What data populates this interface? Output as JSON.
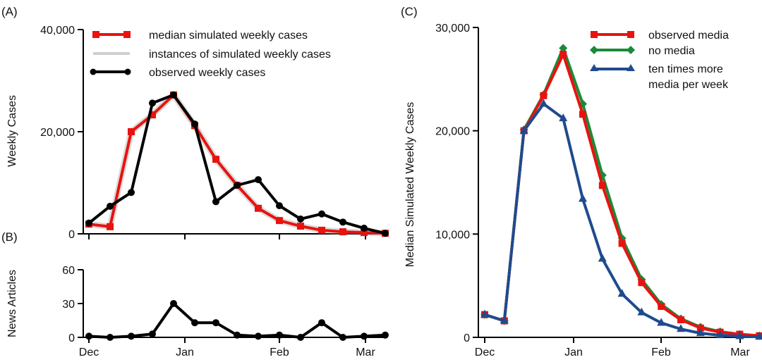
{
  "colors": {
    "median": "#e8130f",
    "observed": "#000000",
    "instances": "#cfcfcf",
    "observed_media": "#e8130f",
    "no_media": "#1a8a3a",
    "ten_times": "#1f4b8e"
  },
  "chart_data": [
    {
      "panel": "(A)",
      "type": "line",
      "ylabel": "Weekly Cases",
      "xlabel": "",
      "ylim": [
        0,
        40000
      ],
      "yticks": [
        0,
        20000,
        40000
      ],
      "ytick_labels": [
        "0",
        "20,000",
        "40,000"
      ],
      "xtick_labels": [
        "Dec",
        "Jan",
        "Feb",
        "Mar"
      ],
      "x_weeks": [
        0,
        1,
        2,
        3,
        4,
        5,
        6,
        7,
        8,
        9,
        10,
        11,
        12,
        13,
        14
      ],
      "legend_position": "top",
      "series": [
        {
          "name": "median simulated weekly cases",
          "marker": "square",
          "values": [
            1900,
            1400,
            20000,
            23300,
            27200,
            21200,
            14600,
            9500,
            5000,
            2600,
            1500,
            700,
            400,
            250,
            100
          ]
        },
        {
          "name": "instances of simulated weekly cases",
          "marker": "none",
          "values": []
        },
        {
          "name": "observed weekly cases",
          "marker": "circle",
          "values": [
            2100,
            5400,
            8100,
            25600,
            27200,
            21500,
            6300,
            9500,
            10600,
            5500,
            2900,
            3900,
            2300,
            1100,
            100
          ]
        }
      ]
    },
    {
      "panel": "(B)",
      "type": "line",
      "ylabel": "News Articles",
      "xlabel": "",
      "ylim": [
        0,
        60
      ],
      "yticks": [
        0,
        30,
        60
      ],
      "ytick_labels": [
        "0",
        "30",
        "60"
      ],
      "xtick_labels": [
        "Dec",
        "Jan",
        "Feb",
        "Mar"
      ],
      "x_weeks": [
        0,
        1,
        2,
        3,
        4,
        5,
        6,
        7,
        8,
        9,
        10,
        11,
        12,
        13,
        14
      ],
      "series": [
        {
          "name": "news articles",
          "marker": "circle",
          "values": [
            1,
            0,
            1,
            3,
            30,
            13,
            13,
            2,
            1,
            2,
            0,
            13,
            0,
            1,
            2
          ]
        }
      ]
    },
    {
      "panel": "(C)",
      "type": "line",
      "ylabel": "Median Simulated Weekly Cases",
      "xlabel": "",
      "ylim": [
        0,
        30000
      ],
      "yticks": [
        0,
        10000,
        20000,
        30000
      ],
      "ytick_labels": [
        "0",
        "10,000",
        "20,000",
        "30,000"
      ],
      "xtick_labels": [
        "Dec",
        "Jan",
        "Feb",
        "Mar"
      ],
      "x_weeks": [
        0,
        1,
        2,
        3,
        4,
        5,
        6,
        7,
        8,
        9,
        10,
        11,
        12,
        13,
        14
      ],
      "legend_position": "top-right",
      "series": [
        {
          "name": "observed media",
          "marker": "square",
          "values": [
            2200,
            1600,
            20000,
            23400,
            27400,
            21600,
            14700,
            9100,
            5300,
            3000,
            1700,
            900,
            500,
            300,
            150
          ]
        },
        {
          "name": "no media",
          "marker": "diamond",
          "values": [
            2200,
            1600,
            20100,
            23500,
            28000,
            22600,
            15700,
            9600,
            5600,
            3200,
            1800,
            1000,
            550,
            300,
            150
          ]
        },
        {
          "name": "ten times more media per week",
          "marker": "triangle",
          "values": [
            2200,
            1600,
            20000,
            22600,
            21200,
            13400,
            7600,
            4200,
            2400,
            1400,
            800,
            400,
            200,
            100,
            50
          ]
        }
      ]
    }
  ],
  "panel_labels": [
    "(A)",
    "(B)",
    "(C)"
  ],
  "legend_a": [
    "median simulated weekly cases",
    "instances of simulated weekly cases",
    "observed weekly cases"
  ],
  "legend_c": [
    "observed media",
    "no media",
    "ten times more",
    "media per week"
  ]
}
